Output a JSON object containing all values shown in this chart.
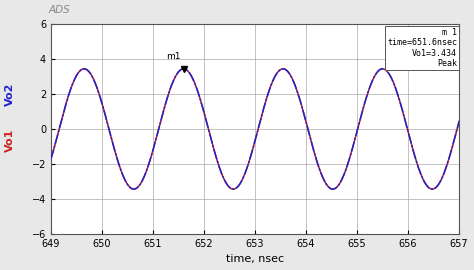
{
  "title": "ADS",
  "xlabel": "time, nsec",
  "ylabel_blue": "Vo2",
  "ylabel_red": "Vo1",
  "xmin": 649,
  "xmax": 657,
  "ymin": -6,
  "ymax": 6,
  "yticks": [
    -6,
    -4,
    -2,
    0,
    2,
    4,
    6
  ],
  "xticks": [
    649,
    650,
    651,
    652,
    653,
    654,
    655,
    656,
    657
  ],
  "amplitude": 3.434,
  "frequency_ghz": 0.513,
  "marker_time": 651.6,
  "marker_label": "m1",
  "annotation_box": "m 1\ntime=651.6nsec\nVo1=3.434\nPeak",
  "color_blue": "#2222cc",
  "color_red": "#cc2222",
  "bg_color": "#e8e8e8",
  "plot_bg": "#ffffff",
  "grid_color": "#aaaaaa",
  "line_width": 1.1
}
